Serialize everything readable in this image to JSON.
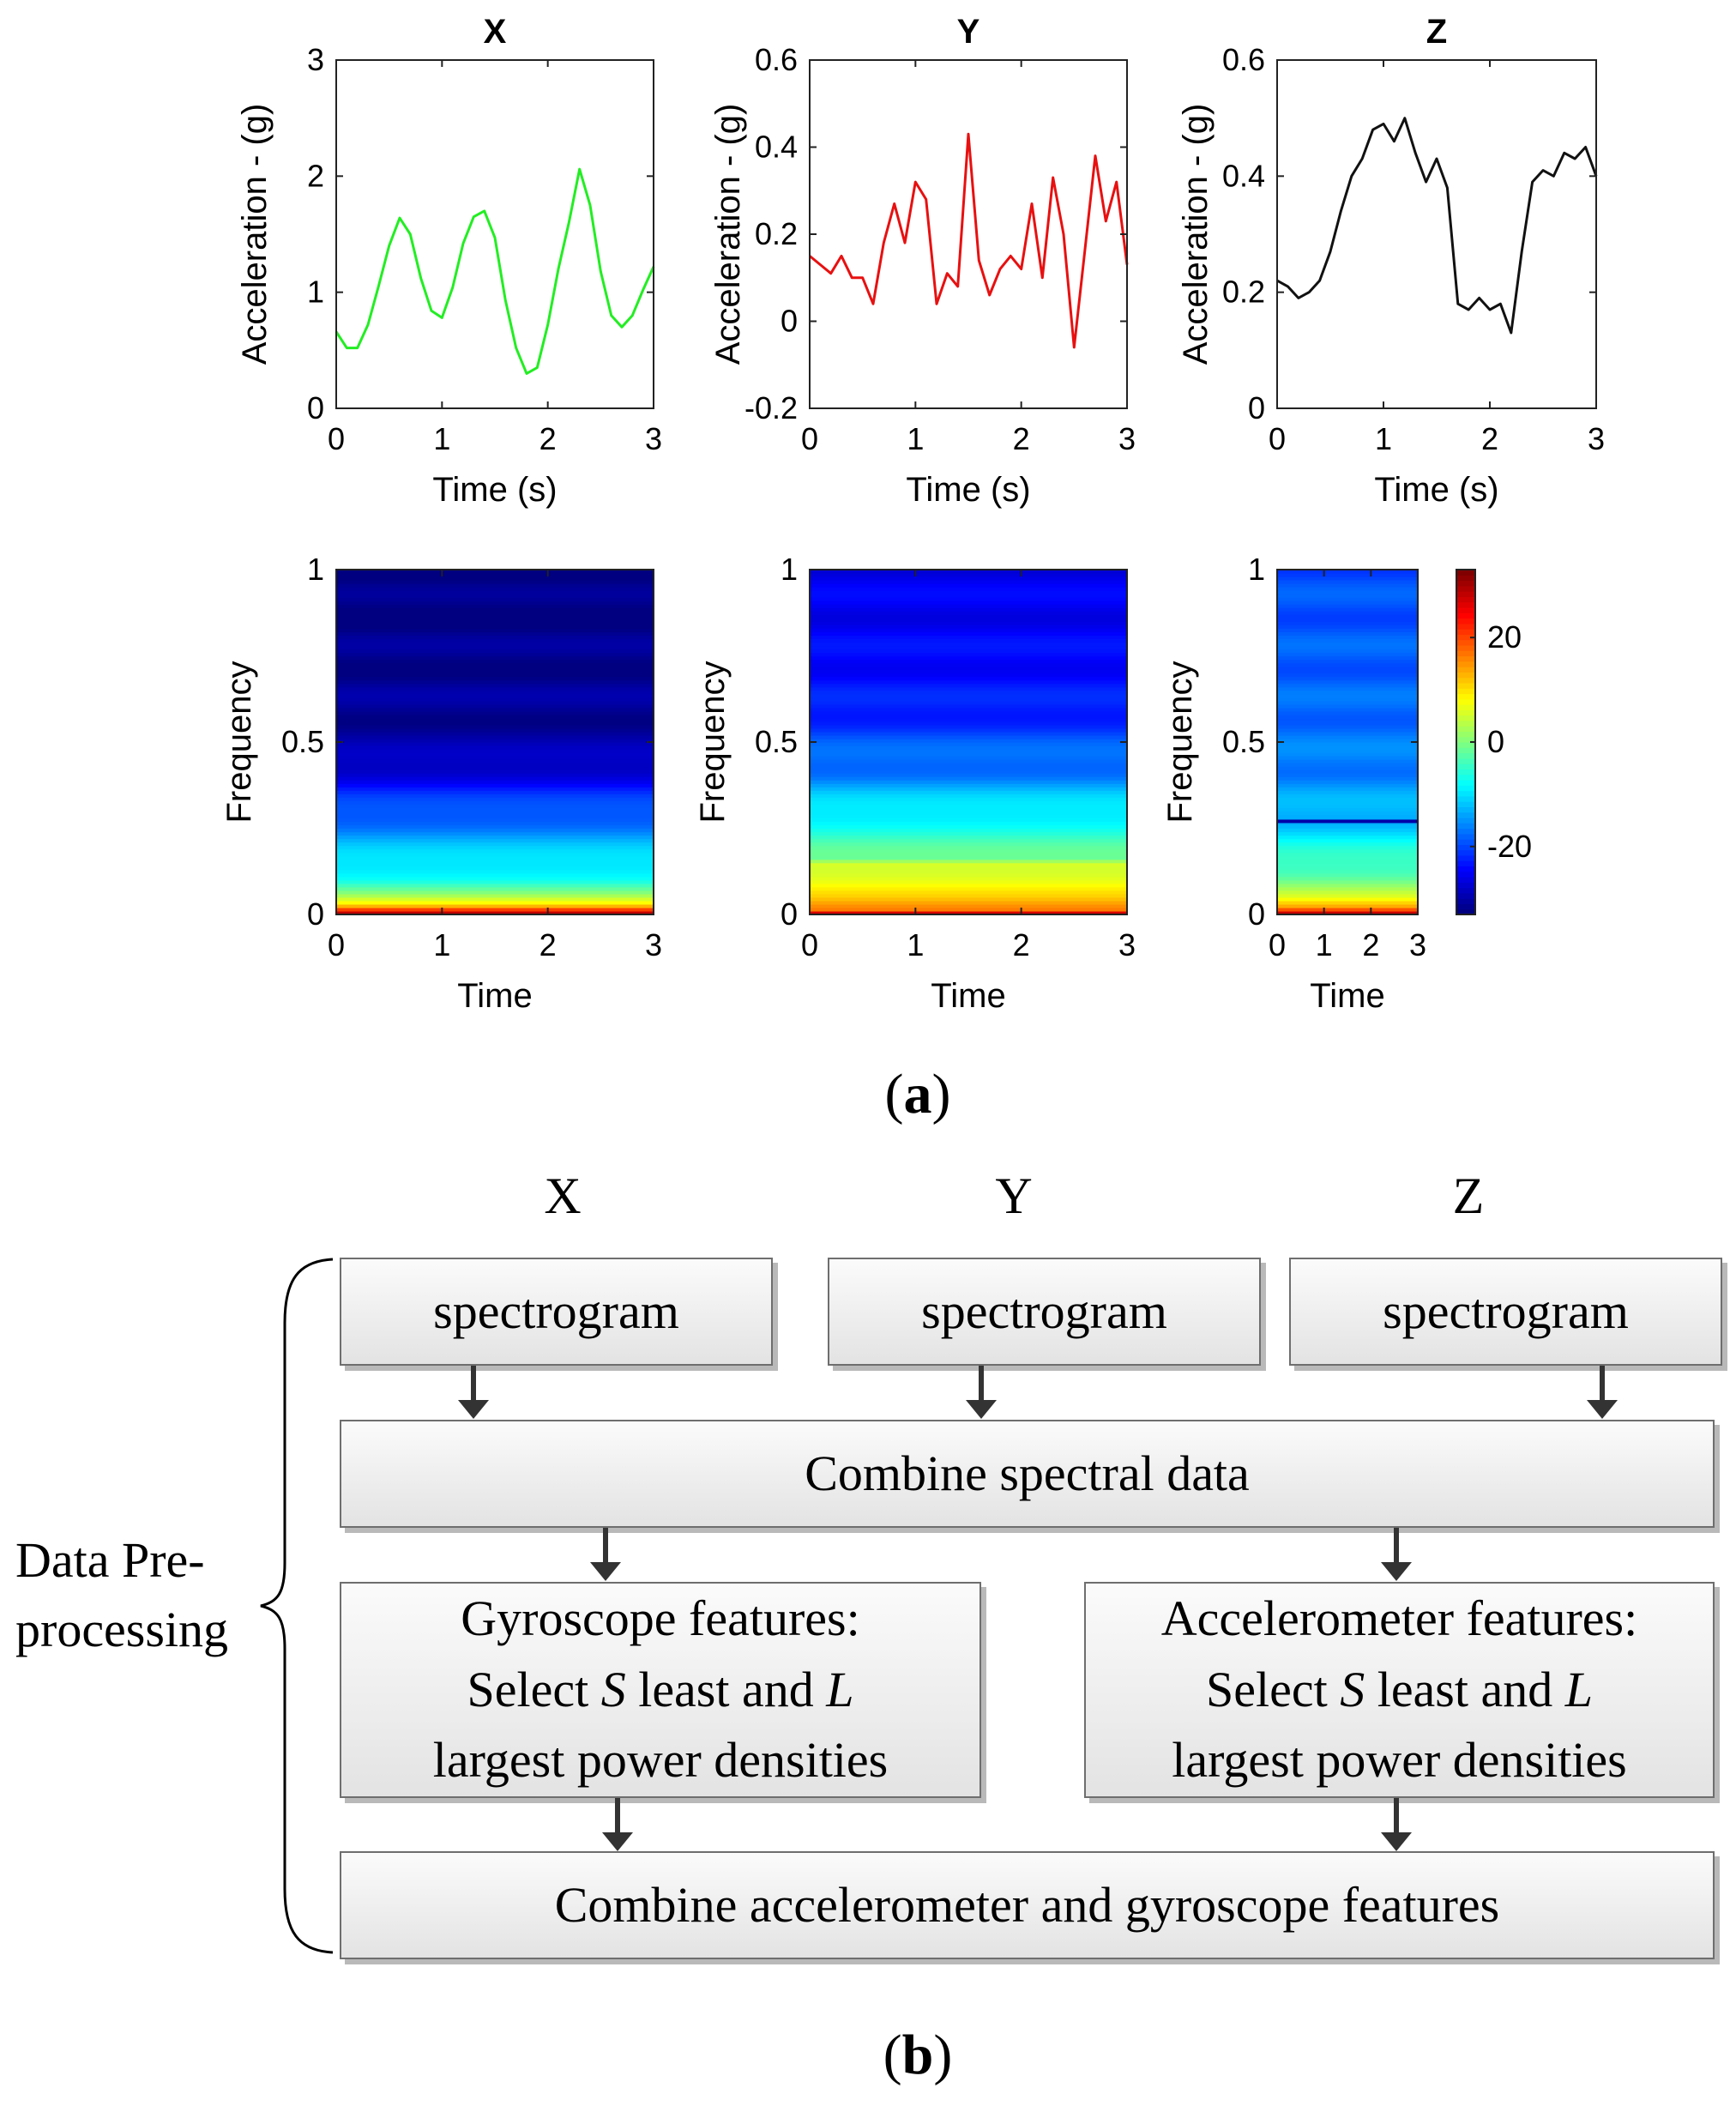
{
  "chart_data": [
    {
      "id": "accel-x",
      "type": "line",
      "title": "X",
      "xlabel": "Time (s)",
      "ylabel": "Acceleration - (g)",
      "xlim": [
        0,
        3
      ],
      "ylim": [
        0,
        3
      ],
      "xticks": [
        0,
        1,
        2,
        3
      ],
      "yticks": [
        0,
        1,
        2,
        3
      ],
      "color": "#22ee22",
      "series": [
        {
          "x": [
            0,
            0.1,
            0.2,
            0.3,
            0.4,
            0.5,
            0.6,
            0.7,
            0.8,
            0.9,
            1.0,
            1.1,
            1.2,
            1.3,
            1.4,
            1.5,
            1.6,
            1.7,
            1.8,
            1.9,
            2.0,
            2.1,
            2.2,
            2.3,
            2.4,
            2.5,
            2.6,
            2.7,
            2.8,
            2.9,
            3.0
          ],
          "y": [
            0.66,
            0.52,
            0.52,
            0.72,
            1.05,
            1.4,
            1.64,
            1.5,
            1.12,
            0.84,
            0.78,
            1.04,
            1.42,
            1.65,
            1.7,
            1.47,
            0.93,
            0.52,
            0.3,
            0.35,
            0.72,
            1.2,
            1.6,
            2.06,
            1.75,
            1.18,
            0.8,
            0.7,
            0.8,
            1.02,
            1.22
          ]
        }
      ]
    },
    {
      "id": "accel-y",
      "type": "line",
      "title": "Y",
      "xlabel": "Time (s)",
      "ylabel": "Acceleration - (g)",
      "xlim": [
        0,
        3
      ],
      "ylim": [
        -0.2,
        0.6
      ],
      "xticks": [
        0,
        1,
        2,
        3
      ],
      "yticks": [
        -0.2,
        0,
        0.2,
        0.4,
        0.6
      ],
      "color": "#e81010",
      "series": [
        {
          "x": [
            0,
            0.1,
            0.2,
            0.3,
            0.4,
            0.5,
            0.6,
            0.7,
            0.8,
            0.9,
            1.0,
            1.1,
            1.2,
            1.3,
            1.4,
            1.5,
            1.6,
            1.7,
            1.8,
            1.9,
            2.0,
            2.1,
            2.2,
            2.3,
            2.4,
            2.5,
            2.6,
            2.7,
            2.8,
            2.9,
            3.0
          ],
          "y": [
            0.15,
            0.13,
            0.11,
            0.15,
            0.1,
            0.1,
            0.04,
            0.18,
            0.27,
            0.18,
            0.32,
            0.28,
            0.04,
            0.11,
            0.08,
            0.43,
            0.14,
            0.06,
            0.12,
            0.15,
            0.12,
            0.27,
            0.1,
            0.33,
            0.2,
            -0.06,
            0.16,
            0.38,
            0.23,
            0.32,
            0.13
          ]
        }
      ]
    },
    {
      "id": "accel-z",
      "type": "line",
      "title": "Z",
      "xlabel": "Time (s)",
      "ylabel": "Acceleration - (g)",
      "xlim": [
        0,
        3
      ],
      "ylim": [
        0,
        0.6
      ],
      "xticks": [
        0,
        1,
        2,
        3
      ],
      "yticks": [
        0,
        0.2,
        0.4,
        0.6
      ],
      "color": "#111111",
      "series": [
        {
          "x": [
            0,
            0.1,
            0.2,
            0.3,
            0.4,
            0.5,
            0.6,
            0.7,
            0.8,
            0.9,
            1.0,
            1.1,
            1.2,
            1.3,
            1.4,
            1.5,
            1.6,
            1.7,
            1.8,
            1.9,
            2.0,
            2.1,
            2.2,
            2.3,
            2.4,
            2.5,
            2.6,
            2.7,
            2.8,
            2.9,
            3.0
          ],
          "y": [
            0.22,
            0.21,
            0.19,
            0.2,
            0.22,
            0.27,
            0.34,
            0.4,
            0.43,
            0.48,
            0.49,
            0.46,
            0.5,
            0.44,
            0.39,
            0.43,
            0.38,
            0.18,
            0.17,
            0.19,
            0.17,
            0.18,
            0.13,
            0.27,
            0.39,
            0.41,
            0.4,
            0.44,
            0.43,
            0.45,
            0.4
          ]
        }
      ]
    },
    {
      "id": "spec-x",
      "type": "heatmap",
      "xlabel": "Time",
      "ylabel": "Frequency",
      "xlim": [
        0,
        3
      ],
      "ylim": [
        0,
        1
      ],
      "xticks": [
        0,
        1,
        2,
        3
      ],
      "yticks": [
        0,
        0.5,
        1
      ],
      "clim": [
        -33,
        33
      ],
      "frequency_profile": [
        {
          "f": 0.0,
          "power": 33
        },
        {
          "f": 0.015,
          "power": 20
        },
        {
          "f": 0.03,
          "power": 8
        },
        {
          "f": 0.06,
          "power": 0
        },
        {
          "f": 0.1,
          "power": -6
        },
        {
          "f": 0.2,
          "power": -13
        },
        {
          "f": 0.3,
          "power": -19
        },
        {
          "f": 0.38,
          "power": -25
        },
        {
          "f": 0.5,
          "power": -31
        },
        {
          "f": 1.0,
          "power": -33
        }
      ]
    },
    {
      "id": "spec-y",
      "type": "heatmap",
      "xlabel": "Time",
      "ylabel": "Frequency",
      "xlim": [
        0,
        3
      ],
      "ylim": [
        0,
        1
      ],
      "xticks": [
        0,
        1,
        2,
        3
      ],
      "yticks": [
        0,
        0.5,
        1
      ],
      "clim": [
        -33,
        33
      ],
      "frequency_profile": [
        {
          "f": 0.0,
          "power": 33
        },
        {
          "f": 0.015,
          "power": 16
        },
        {
          "f": 0.05,
          "power": 10
        },
        {
          "f": 0.15,
          "power": 6
        },
        {
          "f": 0.16,
          "power": -2
        },
        {
          "f": 0.25,
          "power": -6
        },
        {
          "f": 0.4,
          "power": -16
        },
        {
          "f": 0.6,
          "power": -23
        },
        {
          "f": 0.8,
          "power": -25
        },
        {
          "f": 1.0,
          "power": -26
        }
      ]
    },
    {
      "id": "spec-z",
      "type": "heatmap",
      "xlabel": "Time",
      "ylabel": "Frequency",
      "xlim": [
        0,
        3
      ],
      "ylim": [
        0,
        1
      ],
      "xticks": [
        0,
        1,
        2,
        3
      ],
      "yticks": [
        0,
        0.5,
        1
      ],
      "clim": [
        -33,
        33
      ],
      "colorbar_ticks": [
        20,
        0,
        -20
      ],
      "frequency_profile": [
        {
          "f": 0.0,
          "power": 33
        },
        {
          "f": 0.02,
          "power": 14
        },
        {
          "f": 0.05,
          "power": 5
        },
        {
          "f": 0.12,
          "power": -2
        },
        {
          "f": 0.2,
          "power": -8
        },
        {
          "f": 0.27,
          "power": -12
        },
        {
          "f": 0.4,
          "power": -16
        },
        {
          "f": 0.6,
          "power": -18
        },
        {
          "f": 1.0,
          "power": -20
        }
      ],
      "dark_line_at_frequency": 0.27
    }
  ],
  "panel_labels": {
    "a": "a",
    "b": "b"
  },
  "flowchart": {
    "column_headers": [
      "X",
      "Y",
      "Z"
    ],
    "spectrogram_label": "spectrogram",
    "combine_spectral": "Combine spectral data",
    "gyro_box": {
      "line1": "Gyroscope features:",
      "line2_pre": "Select ",
      "line2_s": "S",
      "line2_mid": " least and ",
      "line2_l": "L",
      "line3": "largest power densities"
    },
    "accel_box": {
      "line1": "Accelerometer features:",
      "line2_pre": "Select ",
      "line2_s": "S",
      "line2_mid": " least and ",
      "line2_l": "L",
      "line3": "largest power densities"
    },
    "combine_features": "Combine accelerometer and gyroscope features",
    "side_label_line1": "Data Pre-",
    "side_label_line2": "processing"
  }
}
